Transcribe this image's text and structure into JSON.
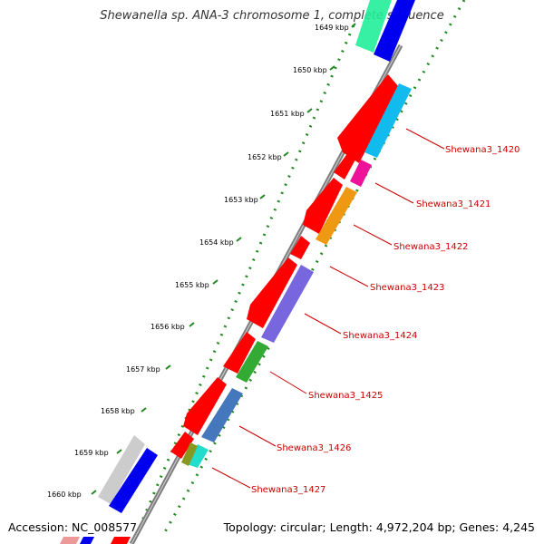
{
  "title": "Shewanella sp. ANA-3 chromosome 1, complete sequence",
  "footer": {
    "accession": "Accession: NC_008577",
    "topology": "Topology: circular; Length: 4,972,204 bp; Genes: 4,245"
  },
  "ticks": [
    "1649 kbp",
    "1650 kbp",
    "1651 kbp",
    "1652 kbp",
    "1653 kbp",
    "1654 kbp",
    "1655 kbp",
    "1656 kbp",
    "1657 kbp",
    "1658 kbp",
    "1659 kbp",
    "1660 kbp"
  ],
  "gene_labels": [
    "Shewana3_1420",
    "Shewana3_1421",
    "Shewana3_1422",
    "Shewana3_1423",
    "Shewana3_1424",
    "Shewana3_1425",
    "Shewana3_1426",
    "Shewana3_1427"
  ],
  "colors": {
    "backbone": "#888888",
    "dots": "#228822",
    "label": "#cc0000",
    "cds": "#ff0000",
    "blue": "#0000ee",
    "cyan": "#11bbee",
    "magenta": "#ee1199",
    "orange": "#ee9911",
    "purple": "#7766dd",
    "green": "#33aa33",
    "steel": "#4477bb",
    "teal": "#22ddcc",
    "olive": "#889922",
    "spring": "#22ee99",
    "silver": "#cccccc"
  }
}
